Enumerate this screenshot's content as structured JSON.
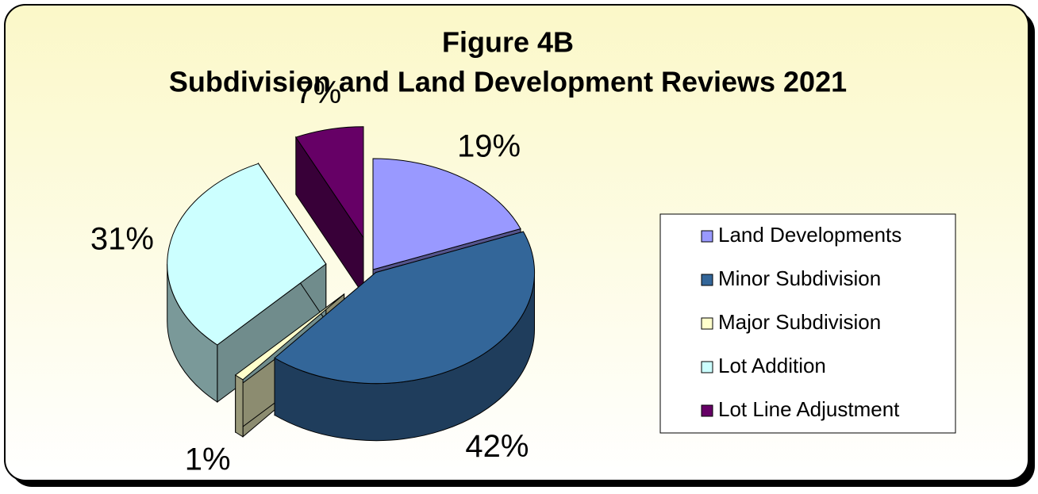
{
  "chart_data": {
    "type": "pie",
    "title": "Figure 4B",
    "subtitle": "Subdivision and Land Development Reviews 2021",
    "categories": [
      "Land Developments",
      "Minor Subdivision",
      "Major Subdivision",
      "Lot Addition",
      "Lot Line Adjustment"
    ],
    "values": [
      19,
      42,
      1,
      31,
      7
    ],
    "value_labels": [
      "19%",
      "42%",
      "1%",
      "31%",
      "7%"
    ],
    "colors": [
      "#9999ff",
      "#336699",
      "#ffffcc",
      "#ccffff",
      "#660066"
    ],
    "legend": "right"
  }
}
